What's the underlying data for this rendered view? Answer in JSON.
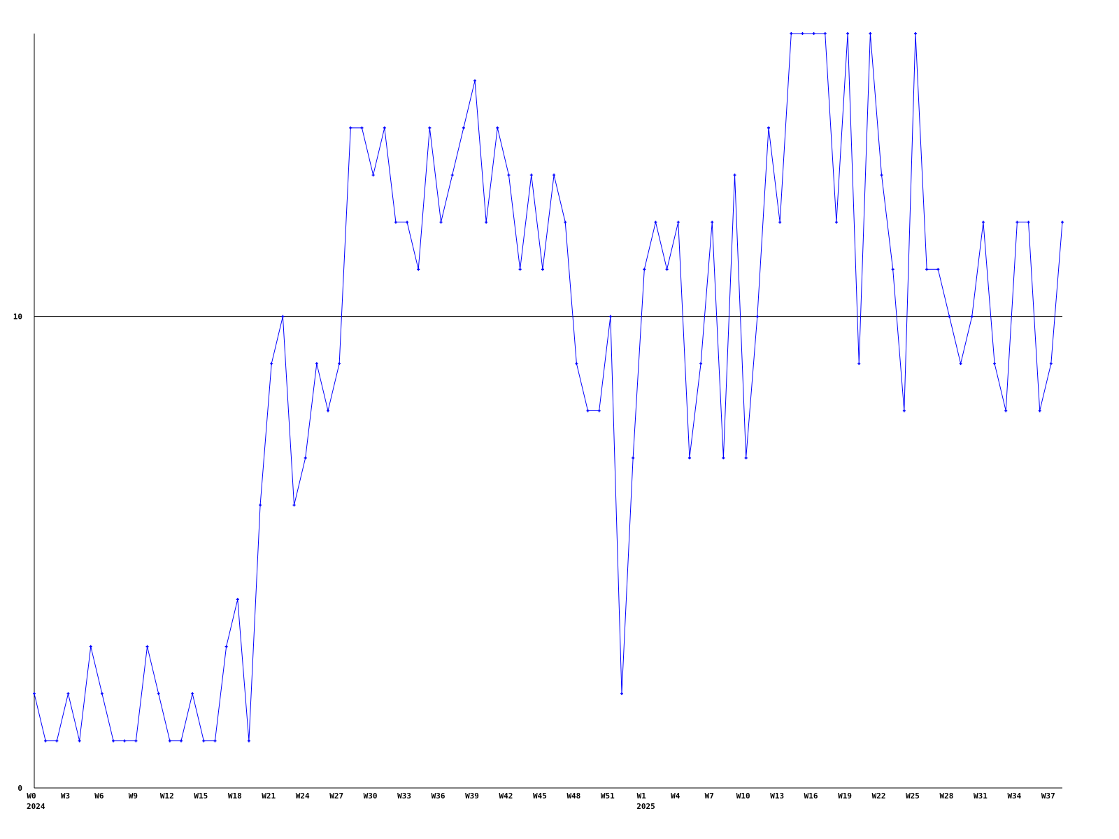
{
  "chart_data": {
    "type": "line",
    "title": "",
    "xlabel": "",
    "ylabel": "",
    "ylim": [
      0,
      16
    ],
    "y_ticks": [
      0,
      10
    ],
    "reference_line": 10,
    "grid": false,
    "line_color": "#0000ff",
    "x": [
      "2024-W0",
      "2024-W1",
      "2024-W2",
      "2024-W3",
      "2024-W4",
      "2024-W5",
      "2024-W6",
      "2024-W7",
      "2024-W8",
      "2024-W9",
      "2024-W10",
      "2024-W11",
      "2024-W12",
      "2024-W13",
      "2024-W14",
      "2024-W15",
      "2024-W16",
      "2024-W17",
      "2024-W18",
      "2024-W19",
      "2024-W20",
      "2024-W21",
      "2024-W22",
      "2024-W23",
      "2024-W24",
      "2024-W25",
      "2024-W26",
      "2024-W27",
      "2024-W28",
      "2024-W29",
      "2024-W30",
      "2024-W31",
      "2024-W32",
      "2024-W33",
      "2024-W34",
      "2024-W35",
      "2024-W36",
      "2024-W37",
      "2024-W38",
      "2024-W39",
      "2024-W40",
      "2024-W41",
      "2024-W42",
      "2024-W43",
      "2024-W44",
      "2024-W45",
      "2024-W46",
      "2024-W47",
      "2024-W48",
      "2024-W49",
      "2024-W50",
      "2024-W51",
      "2024-W52",
      "2025-W0",
      "2025-W1",
      "2025-W2",
      "2025-W3",
      "2025-W4",
      "2025-W5",
      "2025-W6",
      "2025-W7",
      "2025-W8",
      "2025-W9",
      "2025-W10",
      "2025-W11",
      "2025-W12",
      "2025-W13",
      "2025-W14",
      "2025-W15",
      "2025-W16",
      "2025-W17",
      "2025-W18",
      "2025-W19",
      "2025-W20",
      "2025-W21",
      "2025-W22",
      "2025-W23",
      "2025-W24",
      "2025-W25",
      "2025-W26",
      "2025-W27",
      "2025-W28",
      "2025-W29",
      "2025-W30",
      "2025-W31",
      "2025-W32",
      "2025-W33",
      "2025-W34",
      "2025-W35",
      "2025-W36",
      "2025-W37",
      "2025-W38"
    ],
    "values": [
      2,
      1,
      1,
      2,
      1,
      3,
      2,
      1,
      1,
      1,
      3,
      2,
      1,
      1,
      2,
      1,
      1,
      3,
      4,
      1,
      6,
      9,
      10,
      6,
      7,
      9,
      8,
      9,
      14,
      14,
      13,
      14,
      12,
      12,
      11,
      14,
      12,
      13,
      14,
      15,
      12,
      14,
      13,
      11,
      13,
      11,
      13,
      12,
      9,
      8,
      8,
      10,
      2,
      7,
      11,
      12,
      11,
      12,
      7,
      9,
      12,
      7,
      13,
      7,
      10,
      14,
      12,
      16,
      16,
      16,
      16,
      12,
      16,
      9,
      16,
      13,
      11,
      8,
      16,
      11,
      11,
      10,
      9,
      10,
      12,
      9,
      8,
      12,
      12,
      8,
      9,
      12
    ],
    "x_tick_labels": [
      {
        "index": 0,
        "label": "W0",
        "year": "2024"
      },
      {
        "index": 3,
        "label": "W3"
      },
      {
        "index": 6,
        "label": "W6"
      },
      {
        "index": 9,
        "label": "W9"
      },
      {
        "index": 12,
        "label": "W12"
      },
      {
        "index": 15,
        "label": "W15"
      },
      {
        "index": 18,
        "label": "W18"
      },
      {
        "index": 21,
        "label": "W21"
      },
      {
        "index": 24,
        "label": "W24"
      },
      {
        "index": 27,
        "label": "W27"
      },
      {
        "index": 30,
        "label": "W30"
      },
      {
        "index": 33,
        "label": "W33"
      },
      {
        "index": 36,
        "label": "W36"
      },
      {
        "index": 39,
        "label": "W39"
      },
      {
        "index": 42,
        "label": "W42"
      },
      {
        "index": 45,
        "label": "W45"
      },
      {
        "index": 48,
        "label": "W48"
      },
      {
        "index": 51,
        "label": "W51"
      },
      {
        "index": 54,
        "label": "W1",
        "year": "2025"
      },
      {
        "index": 57,
        "label": "W4"
      },
      {
        "index": 60,
        "label": "W7"
      },
      {
        "index": 63,
        "label": "W10"
      },
      {
        "index": 66,
        "label": "W13"
      },
      {
        "index": 69,
        "label": "W16"
      },
      {
        "index": 72,
        "label": "W19"
      },
      {
        "index": 75,
        "label": "W22"
      },
      {
        "index": 78,
        "label": "W25"
      },
      {
        "index": 81,
        "label": "W28"
      },
      {
        "index": 84,
        "label": "W31"
      },
      {
        "index": 87,
        "label": "W34"
      },
      {
        "index": 90,
        "label": "W37"
      }
    ]
  }
}
